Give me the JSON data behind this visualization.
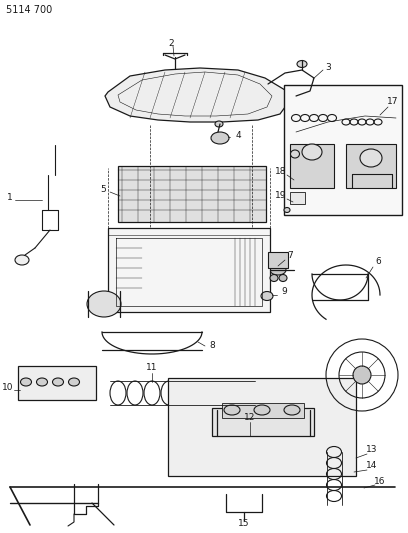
{
  "title": "5114 700",
  "bg_color": "#ffffff",
  "line_color": "#1a1a1a",
  "fig_width": 4.08,
  "fig_height": 5.33,
  "dpi": 100
}
